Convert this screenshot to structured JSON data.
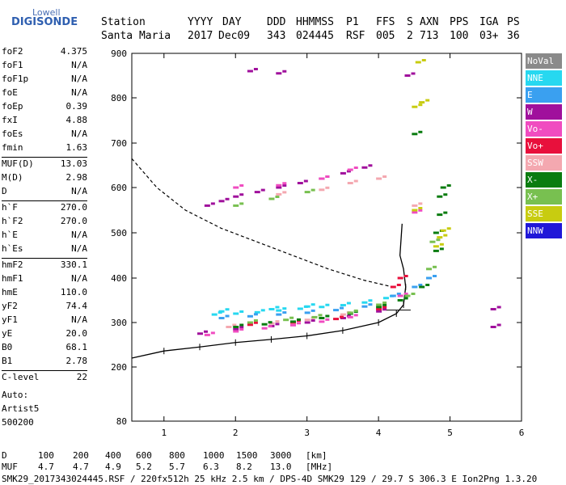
{
  "logo": {
    "line1": "Lowell",
    "line2": "DIGISONDE"
  },
  "header": {
    "labels": [
      "Station",
      "YYYY",
      "DAY",
      "DDD",
      "HHMMSS",
      "P1",
      "FFS",
      "S",
      "AXN",
      "PPS",
      "IGA",
      "PS"
    ],
    "values": [
      "Santa Maria",
      "2017",
      "Dec09",
      "343",
      "024445",
      "RSF",
      "005",
      "2",
      "713",
      "100",
      "03+",
      "36"
    ]
  },
  "params": [
    {
      "k": "foF2",
      "v": "4.375"
    },
    {
      "k": "foF1",
      "v": "N/A"
    },
    {
      "k": "foF1p",
      "v": "N/A"
    },
    {
      "k": "foE",
      "v": "N/A"
    },
    {
      "k": "foEp",
      "v": "0.39"
    },
    {
      "k": "fxI",
      "v": "4.88"
    },
    {
      "k": "foEs",
      "v": "N/A"
    },
    {
      "k": "fmin",
      "v": "1.63"
    },
    {
      "sep": true
    },
    {
      "k": "MUF(D)",
      "v": "13.03"
    },
    {
      "k": "M(D)",
      "v": "2.98"
    },
    {
      "k": "D",
      "v": "N/A"
    },
    {
      "sep": true
    },
    {
      "k": "h`F",
      "v": "270.0"
    },
    {
      "k": "h`F2",
      "v": "270.0"
    },
    {
      "k": "h`E",
      "v": "N/A"
    },
    {
      "k": "h`Es",
      "v": "N/A"
    },
    {
      "sep": true
    },
    {
      "k": "hmF2",
      "v": "330.1"
    },
    {
      "k": "hmF1",
      "v": "N/A"
    },
    {
      "k": "hmE",
      "v": "110.0"
    },
    {
      "k": "yF2",
      "v": "74.4"
    },
    {
      "k": "yF1",
      "v": "N/A"
    },
    {
      "k": "yE",
      "v": "20.0"
    },
    {
      "k": "B0",
      "v": "68.1"
    },
    {
      "k": "B1",
      "v": "2.78"
    },
    {
      "sep": true
    },
    {
      "k": "C-level",
      "v": "22"
    }
  ],
  "auto": {
    "line1": "Auto:",
    "line2": "Artist5",
    "line3": "500200"
  },
  "legend": [
    {
      "label": "NoVal",
      "color": "#8a8a8a"
    },
    {
      "label": "NNE",
      "color": "#27d8f0"
    },
    {
      "label": "E",
      "color": "#3aa0f0"
    },
    {
      "label": "W",
      "color": "#a0109c"
    },
    {
      "label": "Vo-",
      "color": "#f04cc0"
    },
    {
      "label": "Vo+",
      "color": "#e8103c"
    },
    {
      "label": "SSW",
      "color": "#f4a8b0"
    },
    {
      "label": "X-",
      "color": "#0a7c10"
    },
    {
      "label": "X+",
      "color": "#78c050"
    },
    {
      "label": "SSE",
      "color": "#c8cc10"
    },
    {
      "label": "NNW",
      "color": "#2018d8"
    }
  ],
  "footer": {
    "d_label": "D",
    "d_values": [
      "100",
      "200",
      "400",
      "600",
      "800",
      "1000",
      "1500",
      "3000",
      "[km]"
    ],
    "muf_label": "MUF",
    "muf_values": [
      "4.7",
      "4.7",
      "4.9",
      "5.2",
      "5.7",
      "6.3",
      "8.2",
      "13.0",
      "[MHz]"
    ],
    "file_line": "SMK29_2017343024445.RSF / 220fx512h 25 kHz 2.5 km / DPS-4D SMK29 129 / 29.7 S 306.3 E Ion2Png 1.3.20"
  },
  "chart_data": {
    "type": "scatter",
    "xlim": [
      0.55,
      6.0
    ],
    "ylim": [
      80,
      900
    ],
    "x_ticks": [
      1,
      2,
      3,
      4,
      5,
      6
    ],
    "y_ticks": [
      80,
      200,
      300,
      400,
      500,
      600,
      700,
      800,
      900
    ],
    "y_scale": "log-like",
    "series": [
      {
        "name": "NNE",
        "color": "#27d8f0",
        "points": [
          [
            1.7,
            318
          ],
          [
            2.0,
            320
          ],
          [
            2.3,
            323
          ],
          [
            2.6,
            327
          ],
          [
            2.9,
            331
          ],
          [
            3.2,
            335
          ],
          [
            3.5,
            339
          ],
          [
            3.8,
            345
          ],
          [
            4.1,
            355
          ],
          [
            1.8,
            325
          ],
          [
            2.5,
            330
          ],
          [
            3.0,
            336
          ]
        ]
      },
      {
        "name": "E",
        "color": "#3aa0f0",
        "points": [
          [
            1.8,
            310
          ],
          [
            2.2,
            314
          ],
          [
            2.6,
            318
          ],
          [
            3.0,
            322
          ],
          [
            3.4,
            328
          ],
          [
            3.8,
            336
          ],
          [
            4.2,
            360
          ],
          [
            4.5,
            380
          ],
          [
            4.7,
            400
          ]
        ]
      },
      {
        "name": "W",
        "color": "#a0109c",
        "points": [
          [
            1.6,
            560
          ],
          [
            1.8,
            570
          ],
          [
            2.0,
            580
          ],
          [
            2.3,
            590
          ],
          [
            2.6,
            600
          ],
          [
            2.9,
            610
          ],
          [
            3.2,
            620
          ],
          [
            3.5,
            632
          ],
          [
            3.8,
            645
          ],
          [
            1.5,
            275
          ],
          [
            2.0,
            285
          ],
          [
            2.5,
            292
          ],
          [
            3.0,
            300
          ],
          [
            3.5,
            310
          ],
          [
            4.0,
            325
          ],
          [
            5.6,
            330
          ],
          [
            5.6,
            290
          ],
          [
            2.2,
            860
          ],
          [
            2.6,
            855
          ],
          [
            4.4,
            850
          ]
        ]
      },
      {
        "name": "Vo-",
        "color": "#f04cc0",
        "points": [
          [
            1.6,
            272
          ],
          [
            2.0,
            280
          ],
          [
            2.4,
            287
          ],
          [
            2.8,
            294
          ],
          [
            3.2,
            302
          ],
          [
            3.6,
            312
          ],
          [
            4.0,
            330
          ],
          [
            4.3,
            360
          ],
          [
            2.0,
            600
          ],
          [
            2.6,
            605
          ],
          [
            3.2,
            620
          ],
          [
            3.6,
            640
          ],
          [
            4.5,
            545
          ]
        ]
      },
      {
        "name": "Vo+",
        "color": "#e8103c",
        "points": [
          [
            2.2,
            295
          ],
          [
            2.8,
            300
          ],
          [
            3.4,
            308
          ],
          [
            4.0,
            330
          ],
          [
            4.2,
            380
          ],
          [
            4.3,
            400
          ]
        ]
      },
      {
        "name": "SSW",
        "color": "#f4a8b0",
        "points": [
          [
            1.9,
            290
          ],
          [
            2.5,
            298
          ],
          [
            3.0,
            306
          ],
          [
            3.5,
            318
          ],
          [
            2.6,
            585
          ],
          [
            3.2,
            595
          ],
          [
            3.6,
            610
          ],
          [
            4.0,
            620
          ],
          [
            4.5,
            560
          ]
        ]
      },
      {
        "name": "X-",
        "color": "#0a7c10",
        "points": [
          [
            2.0,
            290
          ],
          [
            2.4,
            296
          ],
          [
            2.8,
            302
          ],
          [
            3.2,
            310
          ],
          [
            3.6,
            320
          ],
          [
            4.0,
            335
          ],
          [
            4.3,
            350
          ],
          [
            4.6,
            380
          ],
          [
            4.8,
            460
          ],
          [
            4.8,
            500
          ],
          [
            4.85,
            540
          ],
          [
            4.85,
            580
          ],
          [
            4.9,
            600
          ],
          [
            4.5,
            720
          ]
        ]
      },
      {
        "name": "X+",
        "color": "#78c050",
        "points": [
          [
            2.2,
            300
          ],
          [
            2.7,
            306
          ],
          [
            3.1,
            312
          ],
          [
            3.6,
            322
          ],
          [
            4.0,
            340
          ],
          [
            4.4,
            360
          ],
          [
            4.7,
            420
          ],
          [
            4.75,
            480
          ],
          [
            2.0,
            560
          ],
          [
            2.5,
            575
          ],
          [
            3.0,
            590
          ]
        ]
      },
      {
        "name": "SSE",
        "color": "#c8cc10",
        "points": [
          [
            4.5,
            550
          ],
          [
            4.8,
            470
          ],
          [
            4.85,
            490
          ],
          [
            4.9,
            505
          ],
          [
            4.5,
            780
          ],
          [
            4.6,
            790
          ],
          [
            4.55,
            880
          ]
        ]
      }
    ]
  }
}
